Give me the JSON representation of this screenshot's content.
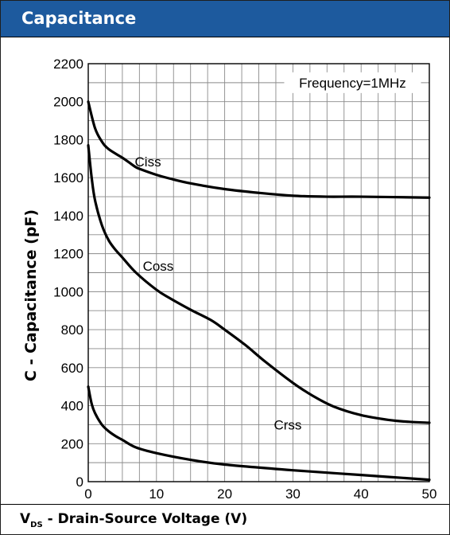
{
  "header": {
    "title": "Capacitance",
    "accent_color": "#1d5a9e"
  },
  "footer": {
    "x_axis_label_main": "V",
    "x_axis_label_sub": "DS",
    "x_axis_label_rest": " - Drain-Source Voltage (V)"
  },
  "chart_data": {
    "type": "line",
    "title": "Capacitance",
    "xlabel": "VDS - Drain-Source Voltage (V)",
    "ylabel": "C - Capacitance (pF)",
    "xlim": [
      0,
      50
    ],
    "ylim": [
      0,
      2200
    ],
    "x_ticks": [
      0,
      10,
      20,
      30,
      40,
      50
    ],
    "y_ticks": [
      0,
      200,
      400,
      600,
      800,
      1000,
      1200,
      1400,
      1600,
      1800,
      2000,
      2200
    ],
    "grid": true,
    "annotation": "Frequency=1MHz",
    "series": [
      {
        "name": "Ciss",
        "x": [
          0,
          1,
          2,
          3,
          5,
          6,
          7,
          8,
          10,
          12,
          15,
          20,
          25,
          30,
          35,
          40,
          50
        ],
        "y": [
          2000,
          1860,
          1790,
          1750,
          1705,
          1680,
          1655,
          1640,
          1615,
          1595,
          1570,
          1540,
          1520,
          1505,
          1500,
          1500,
          1495
        ]
      },
      {
        "name": "Coss",
        "x": [
          0,
          0.5,
          1,
          2,
          3,
          4,
          5,
          7,
          10,
          12,
          15,
          18,
          20,
          23,
          26,
          30,
          33,
          36,
          40,
          44,
          47,
          50
        ],
        "y": [
          1770,
          1600,
          1480,
          1350,
          1270,
          1220,
          1180,
          1100,
          1010,
          965,
          905,
          850,
          800,
          720,
          630,
          520,
          450,
          395,
          350,
          325,
          315,
          310
        ]
      },
      {
        "name": "Crss",
        "x": [
          0,
          0.5,
          1,
          2,
          3,
          4,
          5,
          7,
          10,
          15,
          20,
          30,
          40,
          50
        ],
        "y": [
          500,
          410,
          360,
          300,
          265,
          240,
          220,
          180,
          150,
          115,
          90,
          60,
          35,
          10
        ]
      }
    ]
  }
}
